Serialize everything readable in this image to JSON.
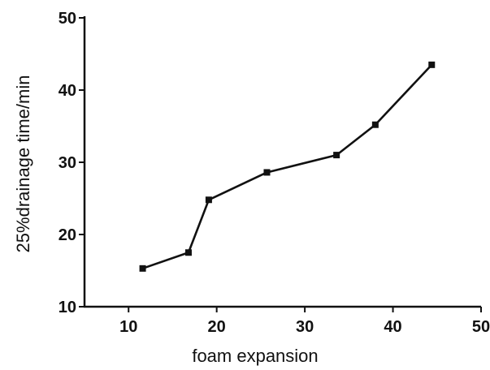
{
  "chart_data": {
    "type": "line",
    "title": "",
    "xlabel": "foam expansion",
    "ylabel": "25%drainage time/min",
    "xlim": [
      5,
      50
    ],
    "ylim": [
      10,
      50
    ],
    "xticks": [
      10,
      20,
      30,
      40,
      50
    ],
    "yticks": [
      10,
      20,
      30,
      40,
      50
    ],
    "grid": false,
    "series": [
      {
        "x": [
          11.6,
          16.8,
          19.1,
          25.7,
          33.6,
          38.0,
          44.4
        ],
        "y": [
          15.3,
          17.5,
          24.8,
          28.6,
          31.0,
          35.2,
          43.5
        ]
      }
    ]
  }
}
